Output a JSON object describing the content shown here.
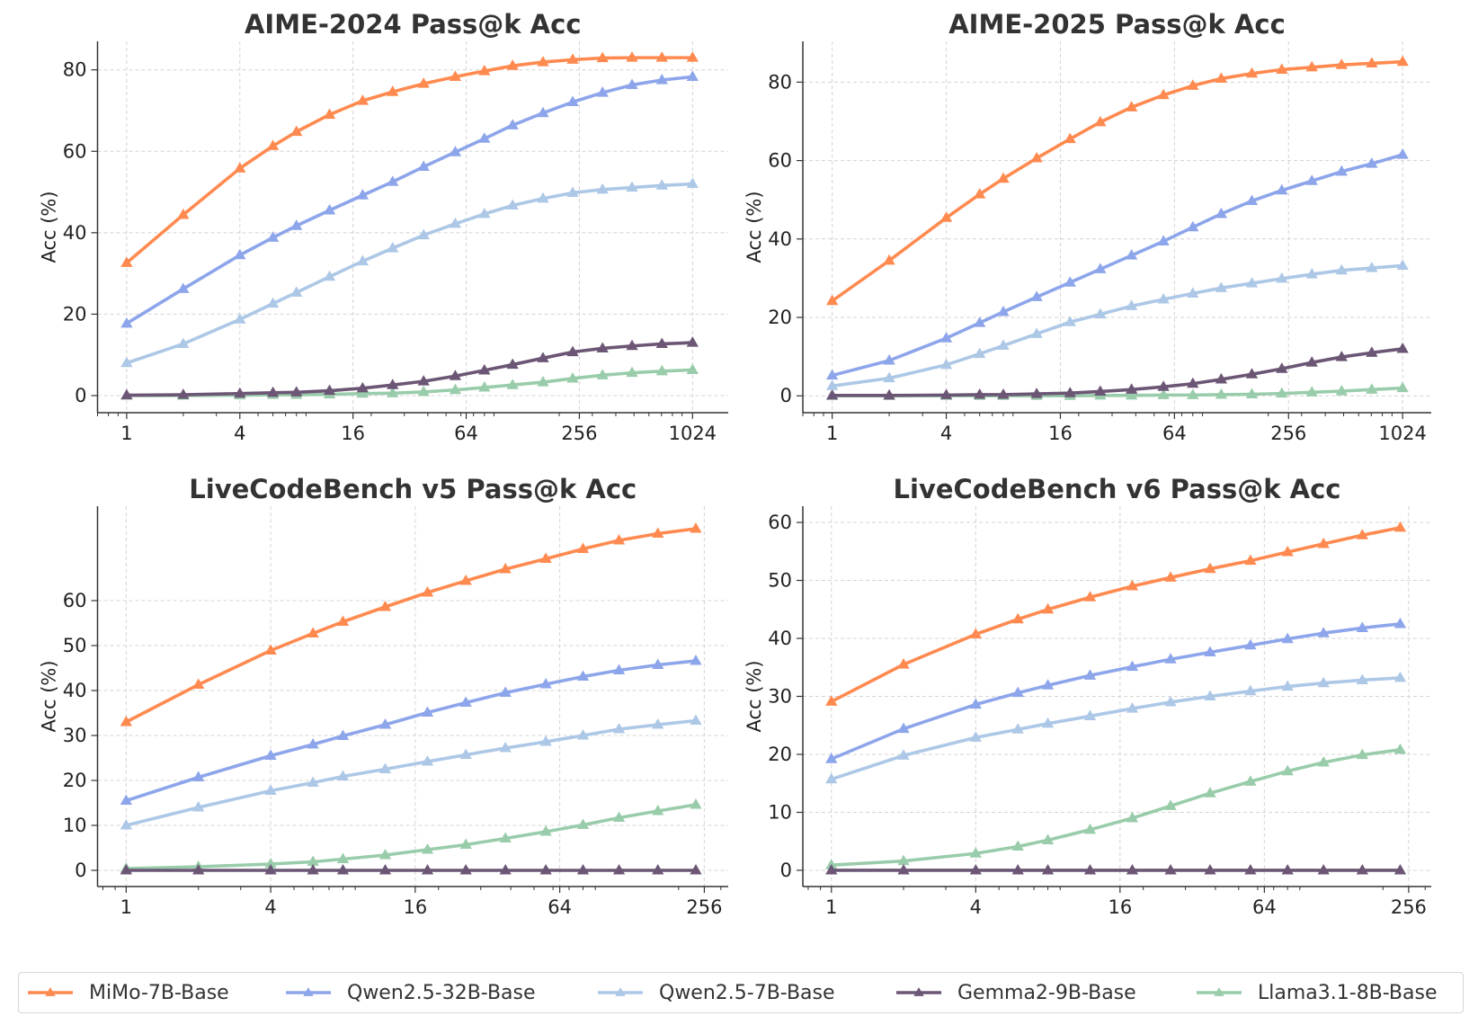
{
  "colors": {
    "MiMo-7B-Base": "#FF8A50",
    "Qwen2.5-32B-Base": "#8DA5EA",
    "Qwen2.5-7B-Base": "#ADC8E6",
    "Gemma2-9B-Base": "#6C5675",
    "Llama3.1-8B-Base": "#99CCAA"
  },
  "legend": {
    "placement": "bottom",
    "marker": "triangle",
    "entries": [
      "MiMo-7B-Base",
      "Qwen2.5-32B-Base",
      "Qwen2.5-7B-Base",
      "Gemma2-9B-Base",
      "Llama3.1-8B-Base"
    ]
  },
  "chart_data": [
    {
      "type": "line",
      "title": "AIME-2024 Pass@k Acc",
      "xlabel": "",
      "ylabel": "Acc (%)",
      "xscale": "log2",
      "xlim": [
        0.7,
        1585
      ],
      "ylim": [
        -4.2,
        87
      ],
      "xticks": [
        1,
        4,
        16,
        64,
        256,
        1024
      ],
      "yticks": [
        0,
        20,
        40,
        60,
        80
      ],
      "grid": true,
      "x": [
        1,
        2,
        4,
        6,
        8,
        12,
        18,
        26,
        38,
        56,
        80,
        113,
        164,
        236,
        340,
        488,
        704,
        1024
      ],
      "series": [
        {
          "name": "MiMo-7B-Base",
          "values": [
            32.6,
            44.4,
            55.8,
            61.3,
            64.8,
            69.0,
            72.4,
            74.6,
            76.6,
            78.3,
            79.7,
            81.0,
            81.9,
            82.5,
            82.9,
            83.0,
            83.0,
            83.0
          ]
        },
        {
          "name": "Qwen2.5-32B-Base",
          "values": [
            17.7,
            26.2,
            34.5,
            38.8,
            41.7,
            45.5,
            49.2,
            52.5,
            56.2,
            59.8,
            63.1,
            66.4,
            69.4,
            72.1,
            74.4,
            76.3,
            77.5,
            78.3
          ]
        },
        {
          "name": "Qwen2.5-7B-Base",
          "values": [
            8.0,
            12.7,
            18.7,
            22.6,
            25.3,
            29.2,
            33.0,
            36.2,
            39.4,
            42.2,
            44.6,
            46.7,
            48.4,
            49.8,
            50.6,
            51.1,
            51.6,
            52.0
          ]
        },
        {
          "name": "Gemma2-9B-Base",
          "values": [
            0.1,
            0.2,
            0.5,
            0.7,
            0.8,
            1.2,
            1.8,
            2.6,
            3.5,
            4.8,
            6.2,
            7.6,
            9.2,
            10.7,
            11.6,
            12.2,
            12.7,
            13.0
          ]
        },
        {
          "name": "Llama3.1-8B-Base",
          "values": [
            0.0,
            0.0,
            0.1,
            0.2,
            0.2,
            0.3,
            0.5,
            0.6,
            0.9,
            1.4,
            2.0,
            2.6,
            3.3,
            4.2,
            5.0,
            5.6,
            6.0,
            6.3
          ]
        }
      ]
    },
    {
      "type": "line",
      "title": "AIME-2025 Pass@k Acc",
      "xlabel": "",
      "ylabel": "Acc (%)",
      "xscale": "log2",
      "xlim": [
        0.7,
        1450
      ],
      "ylim": [
        -4.3,
        90.4
      ],
      "xticks": [
        1,
        4,
        16,
        64,
        256,
        1024
      ],
      "yticks": [
        0,
        20,
        40,
        60,
        80
      ],
      "grid": true,
      "x": [
        1,
        2,
        4,
        6,
        8,
        12,
        18,
        26,
        38,
        56,
        80,
        113,
        164,
        236,
        340,
        488,
        704,
        1024
      ],
      "series": [
        {
          "name": "MiMo-7B-Base",
          "values": [
            24.2,
            34.5,
            45.4,
            51.4,
            55.4,
            60.6,
            65.5,
            69.8,
            73.6,
            76.7,
            79.1,
            80.9,
            82.2,
            83.2,
            83.8,
            84.4,
            84.8,
            85.2
          ]
        },
        {
          "name": "Qwen2.5-32B-Base",
          "values": [
            5.2,
            9.0,
            14.7,
            18.6,
            21.4,
            25.2,
            28.9,
            32.3,
            35.8,
            39.4,
            43.0,
            46.4,
            49.7,
            52.4,
            54.8,
            57.2,
            59.2,
            61.5
          ]
        },
        {
          "name": "Qwen2.5-7B-Base",
          "values": [
            2.5,
            4.5,
            7.9,
            10.7,
            12.8,
            15.8,
            18.8,
            20.8,
            22.9,
            24.6,
            26.1,
            27.5,
            28.7,
            29.9,
            31.0,
            32.0,
            32.6,
            33.2
          ]
        },
        {
          "name": "Gemma2-9B-Base",
          "values": [
            0.1,
            0.1,
            0.2,
            0.3,
            0.3,
            0.5,
            0.7,
            1.1,
            1.6,
            2.3,
            3.1,
            4.2,
            5.5,
            6.9,
            8.5,
            9.9,
            11.0,
            12.0
          ]
        },
        {
          "name": "Llama3.1-8B-Base",
          "values": [
            0.0,
            0.0,
            0.0,
            0.0,
            0.0,
            0.0,
            0.0,
            0.1,
            0.1,
            0.2,
            0.2,
            0.3,
            0.4,
            0.6,
            0.9,
            1.2,
            1.6,
            2.0
          ]
        }
      ]
    },
    {
      "type": "line",
      "title": "LiveCodeBench v5 Pass@k Acc",
      "xlabel": "",
      "ylabel": "Acc (%)",
      "xscale": "log2",
      "xlim": [
        0.76,
        322
      ],
      "ylim": [
        -3.6,
        81
      ],
      "xticks": [
        1,
        4,
        16,
        64,
        256
      ],
      "yticks": [
        0,
        10,
        20,
        30,
        40,
        50,
        60
      ],
      "grid": true,
      "x": [
        1,
        2,
        4,
        6,
        8,
        12,
        18,
        26,
        38,
        56,
        80,
        113,
        164,
        236
      ],
      "series": [
        {
          "name": "MiMo-7B-Base",
          "values": [
            33.0,
            41.3,
            48.9,
            52.7,
            55.3,
            58.6,
            61.8,
            64.4,
            67.0,
            69.3,
            71.5,
            73.4,
            74.9,
            76.0
          ]
        },
        {
          "name": "Qwen2.5-32B-Base",
          "values": [
            15.5,
            20.7,
            25.5,
            28.0,
            29.9,
            32.4,
            35.1,
            37.3,
            39.5,
            41.4,
            43.1,
            44.5,
            45.7,
            46.6
          ]
        },
        {
          "name": "Qwen2.5-7B-Base",
          "values": [
            10.0,
            14.0,
            17.7,
            19.5,
            20.9,
            22.5,
            24.2,
            25.7,
            27.2,
            28.6,
            30.0,
            31.4,
            32.4,
            33.3
          ]
        },
        {
          "name": "Gemma2-9B-Base",
          "values": [
            0,
            0,
            0,
            0,
            0,
            0,
            0,
            0,
            0,
            0,
            0,
            0,
            0,
            0
          ]
        },
        {
          "name": "Llama3.1-8B-Base",
          "values": [
            0.4,
            0.8,
            1.4,
            1.9,
            2.5,
            3.4,
            4.6,
            5.7,
            7.1,
            8.6,
            10.1,
            11.7,
            13.2,
            14.6
          ]
        }
      ]
    },
    {
      "type": "line",
      "title": "LiveCodeBench v6 Pass@k Acc",
      "xlabel": "",
      "ylabel": "Acc (%)",
      "xscale": "log2",
      "xlim": [
        0.76,
        318
      ],
      "ylim": [
        -2.8,
        62.8
      ],
      "xticks": [
        1,
        4,
        16,
        64,
        256
      ],
      "yticks": [
        0,
        10,
        20,
        30,
        40,
        50,
        60
      ],
      "grid": true,
      "x": [
        1,
        2,
        4,
        6,
        8,
        12,
        18,
        26,
        38,
        56,
        80,
        113,
        164,
        236
      ],
      "series": [
        {
          "name": "MiMo-7B-Base",
          "values": [
            29.1,
            35.5,
            40.7,
            43.3,
            45.0,
            47.1,
            49.0,
            50.5,
            52.0,
            53.4,
            54.9,
            56.3,
            57.8,
            59.1
          ]
        },
        {
          "name": "Qwen2.5-32B-Base",
          "values": [
            19.2,
            24.4,
            28.6,
            30.6,
            31.9,
            33.6,
            35.1,
            36.4,
            37.6,
            38.8,
            39.9,
            40.9,
            41.8,
            42.5
          ]
        },
        {
          "name": "Qwen2.5-7B-Base",
          "values": [
            15.7,
            19.8,
            22.9,
            24.3,
            25.3,
            26.6,
            27.9,
            29.0,
            30.0,
            30.9,
            31.7,
            32.3,
            32.8,
            33.2
          ]
        },
        {
          "name": "Gemma2-9B-Base",
          "values": [
            0,
            0,
            0,
            0,
            0,
            0,
            0,
            0,
            0,
            0,
            0,
            0,
            0,
            0
          ]
        },
        {
          "name": "Llama3.1-8B-Base",
          "values": [
            0.9,
            1.6,
            2.9,
            4.1,
            5.2,
            7.0,
            9.0,
            11.1,
            13.3,
            15.3,
            17.1,
            18.6,
            19.9,
            20.8
          ]
        }
      ]
    }
  ]
}
